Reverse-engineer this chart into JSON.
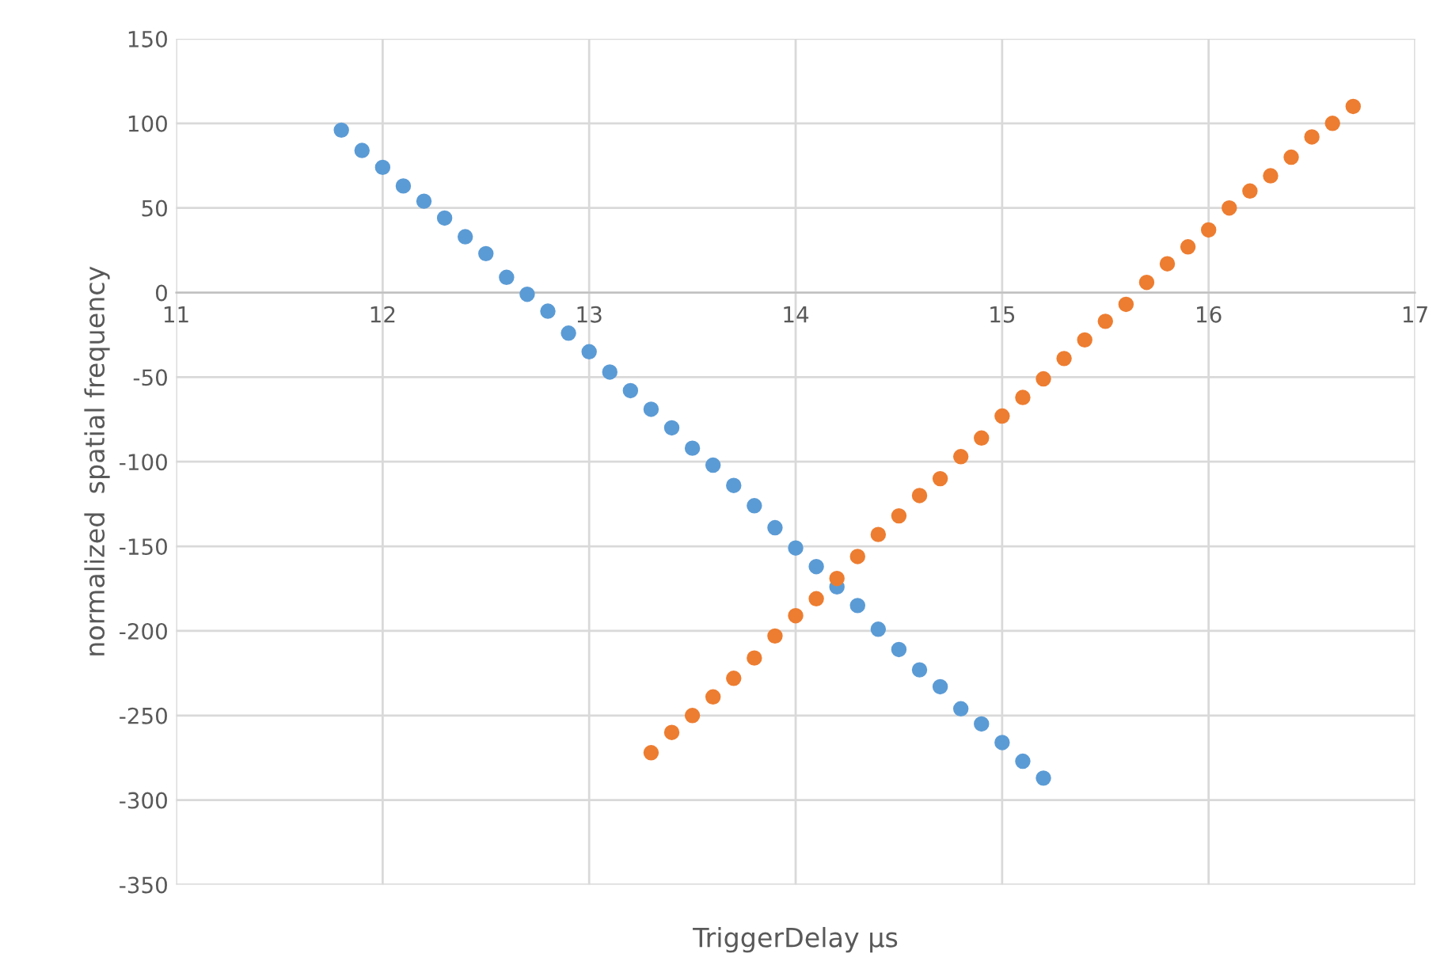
{
  "chart_data": {
    "type": "scatter",
    "xlabel": "TriggerDelay µs",
    "ylabel": "normalized  spatial frequency",
    "xlim": [
      11,
      17
    ],
    "xticks": [
      11,
      12,
      13,
      14,
      15,
      16,
      17
    ],
    "ylim": [
      -350,
      150
    ],
    "yticks": [
      -350,
      -300,
      -250,
      -200,
      -150,
      -100,
      -50,
      0,
      50,
      100,
      150
    ],
    "grid": true,
    "marker": "circle",
    "series": [
      {
        "color": "#5b9bd5",
        "x": [
          11.8,
          11.9,
          12.0,
          12.1,
          12.2,
          12.3,
          12.4,
          12.5,
          12.6,
          12.7,
          12.8,
          12.9,
          13.0,
          13.1,
          13.2,
          13.3,
          13.4,
          13.5,
          13.6,
          13.7,
          13.8,
          13.9,
          14.0,
          14.1,
          14.2,
          14.3,
          14.4,
          14.5,
          14.6,
          14.7,
          14.8,
          14.9,
          15.0,
          15.1,
          15.2
        ],
        "values": [
          96,
          84,
          74,
          63,
          54,
          44,
          33,
          23,
          9,
          -1,
          -11,
          -24,
          -35,
          -47,
          -58,
          -69,
          -80,
          -92,
          -102,
          -114,
          -126,
          -139,
          -151,
          -162,
          -174,
          -185,
          -199,
          -211,
          -223,
          -233,
          -246,
          -255,
          -266,
          -277,
          -287
        ]
      },
      {
        "color": "#ed7d31",
        "x": [
          13.3,
          13.4,
          13.5,
          13.6,
          13.7,
          13.8,
          13.9,
          14.0,
          14.1,
          14.2,
          14.3,
          14.4,
          14.5,
          14.6,
          14.7,
          14.8,
          14.9,
          15.0,
          15.1,
          15.2,
          15.3,
          15.4,
          15.5,
          15.6,
          15.7,
          15.8,
          15.9,
          16.0,
          16.1,
          16.2,
          16.3,
          16.4,
          16.5,
          16.6,
          16.7
        ],
        "values": [
          -272,
          -260,
          -250,
          -239,
          -228,
          -216,
          -203,
          -191,
          -181,
          -169,
          -156,
          -143,
          -132,
          -120,
          -110,
          -97,
          -86,
          -73,
          -62,
          -51,
          -39,
          -28,
          -17,
          -7,
          6,
          17,
          27,
          37,
          50,
          60,
          69,
          80,
          92,
          100,
          110
        ]
      }
    ]
  }
}
